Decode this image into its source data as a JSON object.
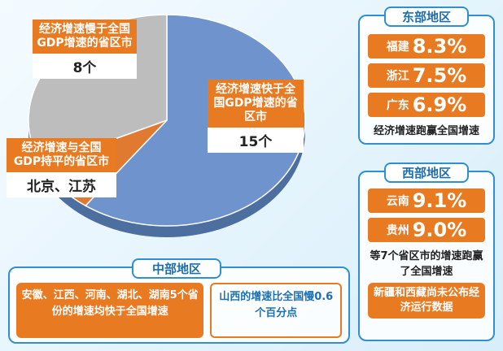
{
  "chart_data": {
    "type": "pie",
    "categories": [
      "经济增速快于全国GDP增速的省区市",
      "经济增速与全国GDP持平的省区市",
      "经济增速慢于全国GDP增速的省区市"
    ],
    "values": [
      15,
      2,
      8
    ],
    "value_labels": [
      "15个",
      "北京、江苏",
      "8个"
    ],
    "colors": [
      "#6f93cc",
      "#e07a30",
      "#bdbdbd"
    ]
  },
  "east": {
    "title": "东部地区",
    "rows": [
      {
        "name": "福建",
        "value": "8.3%"
      },
      {
        "name": "浙江",
        "value": "7.5%"
      },
      {
        "name": "广东",
        "value": "6.9%"
      }
    ],
    "note": "经济增速跑赢全国增速"
  },
  "west": {
    "title": "西部地区",
    "rows": [
      {
        "name": "云南",
        "value": "9.1%"
      },
      {
        "name": "贵州",
        "value": "9.0%"
      }
    ],
    "note": "等7个省区市的增速跑赢了全国增速",
    "note2": "新疆和西藏尚未公布经济运行数据"
  },
  "central": {
    "title": "中部地区",
    "left": "安徽、江西、河南、湖北、湖南5个省份的增速均快于全国增速",
    "right": "山西的增速比全国慢0.6个百分点"
  }
}
